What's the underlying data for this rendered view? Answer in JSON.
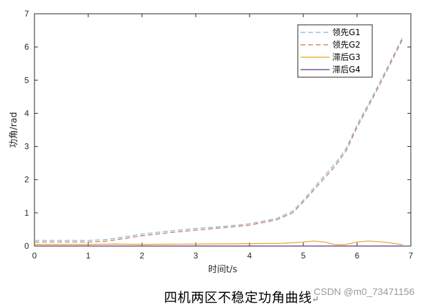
{
  "chart_data": {
    "type": "line",
    "xlabel": "时间t/s",
    "ylabel": "功角/rad",
    "xlim": [
      0,
      7
    ],
    "ylim": [
      0,
      7
    ],
    "xticks": [
      0,
      1,
      2,
      3,
      4,
      5,
      6,
      7
    ],
    "yticks": [
      0,
      1,
      2,
      3,
      4,
      5,
      6,
      7
    ],
    "grid": false,
    "legend_position": "top-right",
    "series": [
      {
        "name": "领先G1",
        "color": "#7fb3d9",
        "style": "dashed",
        "x": [
          0,
          1,
          1.3,
          1.6,
          2,
          2.5,
          3,
          3.5,
          4,
          4.5,
          4.8,
          5,
          5.3,
          5.6,
          5.8,
          6,
          6.3,
          6.6,
          6.85
        ],
        "y": [
          0.17,
          0.17,
          0.19,
          0.26,
          0.36,
          0.45,
          0.53,
          0.59,
          0.67,
          0.83,
          1.05,
          1.38,
          1.95,
          2.5,
          2.95,
          3.65,
          4.55,
          5.5,
          6.3
        ]
      },
      {
        "name": "领先G2",
        "color": "#c8734a",
        "style": "dashed",
        "x": [
          0,
          1,
          1.3,
          1.6,
          2,
          2.5,
          3,
          3.5,
          4,
          4.5,
          4.8,
          5,
          5.3,
          5.6,
          5.8,
          6,
          6.3,
          6.6,
          6.85
        ],
        "y": [
          0.12,
          0.12,
          0.14,
          0.21,
          0.31,
          0.4,
          0.48,
          0.55,
          0.63,
          0.79,
          1.0,
          1.33,
          1.88,
          2.42,
          2.88,
          3.58,
          4.48,
          5.43,
          6.25
        ]
      },
      {
        "name": "滞后G3",
        "color": "#e8a020",
        "style": "solid",
        "x": [
          0,
          1,
          1.5,
          2,
          3,
          4,
          4.6,
          5,
          5.2,
          5.4,
          5.6,
          5.8,
          6,
          6.2,
          6.5,
          6.85
        ],
        "y": [
          0.05,
          0.05,
          0.06,
          0.05,
          0.06,
          0.07,
          0.08,
          0.12,
          0.15,
          0.12,
          0.04,
          0.05,
          0.12,
          0.15,
          0.12,
          0.04
        ]
      },
      {
        "name": "滞后G4",
        "color": "#5b2d80",
        "style": "solid",
        "x": [
          0,
          6.85
        ],
        "y": [
          0,
          0
        ]
      }
    ]
  },
  "caption": "四机两区不稳定功角曲线",
  "caption_mark": "↵",
  "watermark": "CSDN @m0_73471156"
}
